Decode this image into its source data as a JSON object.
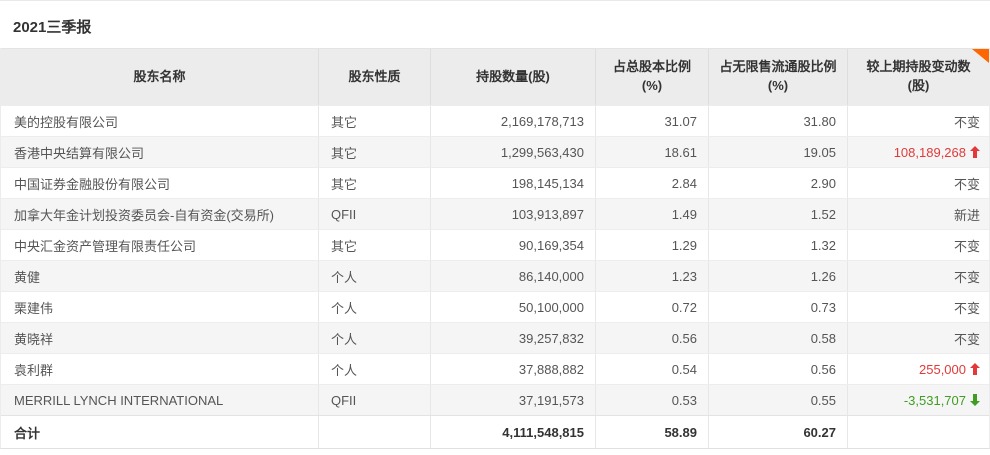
{
  "title": "2021三季报",
  "table": {
    "columns": [
      {
        "label": "股东名称"
      },
      {
        "label": "股东性质"
      },
      {
        "label": "持股数量(股)"
      },
      {
        "label": "占总股本比例(%)"
      },
      {
        "label": "占无限售流通股比例(%)"
      },
      {
        "label": "较上期持股变动数(股)"
      }
    ],
    "rows": [
      {
        "name": "美的控股有限公司",
        "nature": "其它",
        "shares": "2,169,178,713",
        "pct_total": "31.07",
        "pct_float": "31.80",
        "change": {
          "text": "不变",
          "direction": "none"
        }
      },
      {
        "name": "香港中央结算有限公司",
        "nature": "其它",
        "shares": "1,299,563,430",
        "pct_total": "18.61",
        "pct_float": "19.05",
        "change": {
          "text": "108,189,268",
          "direction": "up"
        }
      },
      {
        "name": "中国证券金融股份有限公司",
        "nature": "其它",
        "shares": "198,145,134",
        "pct_total": "2.84",
        "pct_float": "2.90",
        "change": {
          "text": "不变",
          "direction": "none"
        }
      },
      {
        "name": "加拿大年金计划投资委员会-自有资金(交易所)",
        "nature": "QFII",
        "shares": "103,913,897",
        "pct_total": "1.49",
        "pct_float": "1.52",
        "change": {
          "text": "新进",
          "direction": "none"
        }
      },
      {
        "name": "中央汇金资产管理有限责任公司",
        "nature": "其它",
        "shares": "90,169,354",
        "pct_total": "1.29",
        "pct_float": "1.32",
        "change": {
          "text": "不变",
          "direction": "none"
        }
      },
      {
        "name": "黄健",
        "nature": "个人",
        "shares": "86,140,000",
        "pct_total": "1.23",
        "pct_float": "1.26",
        "change": {
          "text": "不变",
          "direction": "none"
        }
      },
      {
        "name": "栗建伟",
        "nature": "个人",
        "shares": "50,100,000",
        "pct_total": "0.72",
        "pct_float": "0.73",
        "change": {
          "text": "不变",
          "direction": "none"
        }
      },
      {
        "name": "黄晓祥",
        "nature": "个人",
        "shares": "39,257,832",
        "pct_total": "0.56",
        "pct_float": "0.58",
        "change": {
          "text": "不变",
          "direction": "none"
        }
      },
      {
        "name": "袁利群",
        "nature": "个人",
        "shares": "37,888,882",
        "pct_total": "0.54",
        "pct_float": "0.56",
        "change": {
          "text": "255,000",
          "direction": "up"
        }
      },
      {
        "name": "MERRILL LYNCH INTERNATIONAL",
        "nature": "QFII",
        "shares": "37,191,573",
        "pct_total": "0.53",
        "pct_float": "0.55",
        "change": {
          "text": "-3,531,707",
          "direction": "down"
        }
      }
    ],
    "total": {
      "label": "合计",
      "nature": "",
      "shares": "4,111,548,815",
      "pct_total": "58.89",
      "pct_float": "60.27",
      "change": ""
    }
  },
  "colors": {
    "up_red": "#e23a3a",
    "down_green": "#419c23",
    "corner_orange": "#ff6600",
    "header_bg": "#ececec",
    "row_alt_bg": "#f5f5f5"
  }
}
